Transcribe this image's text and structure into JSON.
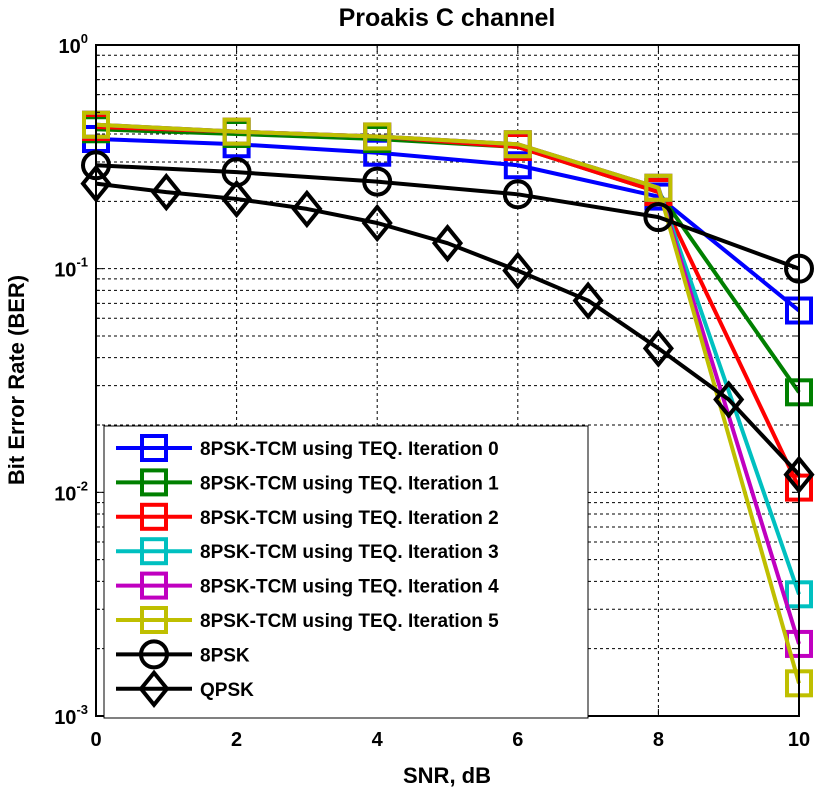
{
  "chart_data": {
    "type": "line",
    "title": "Proakis C channel",
    "xlabel": "SNR, dB",
    "ylabel": "Bit Error Rate (BER)",
    "xlim": [
      0,
      10
    ],
    "ylim": [
      0.001,
      1
    ],
    "yscale": "log",
    "grid": true,
    "legend_position": "bottom-left",
    "x_ticks": [
      0,
      2,
      4,
      6,
      8,
      10
    ],
    "y_ticks": [
      {
        "value": 1,
        "base": "10",
        "exp": "0"
      },
      {
        "value": 0.1,
        "base": "10",
        "exp": "-1"
      },
      {
        "value": 0.01,
        "base": "10",
        "exp": "-2"
      },
      {
        "value": 0.001,
        "base": "10",
        "exp": "-3"
      }
    ],
    "series": [
      {
        "name": "8PSK-TCM using TEQ. Iteration 0",
        "color": "#0000ff",
        "marker": "square",
        "x": [
          0,
          2,
          4,
          6,
          8,
          10
        ],
        "y": [
          0.38,
          0.36,
          0.33,
          0.29,
          0.21,
          0.065
        ]
      },
      {
        "name": "8PSK-TCM using TEQ. Iteration 1",
        "color": "#008000",
        "marker": "square",
        "x": [
          0,
          2,
          4,
          6,
          8,
          10
        ],
        "y": [
          0.42,
          0.4,
          0.38,
          0.35,
          0.22,
          0.028
        ]
      },
      {
        "name": "8PSK-TCM using TEQ. Iteration 2",
        "color": "#ff0000",
        "marker": "square",
        "x": [
          0,
          2,
          4,
          6,
          8,
          10
        ],
        "y": [
          0.43,
          0.41,
          0.39,
          0.35,
          0.22,
          0.0105
        ]
      },
      {
        "name": "8PSK-TCM using TEQ. Iteration 3",
        "color": "#00c0c0",
        "marker": "square",
        "x": [
          0,
          2,
          4,
          6,
          8,
          10
        ],
        "y": [
          0.44,
          0.41,
          0.39,
          0.36,
          0.23,
          0.0035
        ]
      },
      {
        "name": "8PSK-TCM using TEQ. Iteration 4",
        "color": "#c000c0",
        "marker": "square",
        "x": [
          0,
          2,
          4,
          6,
          8,
          10
        ],
        "y": [
          0.44,
          0.41,
          0.39,
          0.36,
          0.23,
          0.0021
        ]
      },
      {
        "name": "8PSK-TCM using TEQ. Iteration 5",
        "color": "#bfbf00",
        "marker": "square",
        "x": [
          0,
          2,
          4,
          6,
          8,
          10
        ],
        "y": [
          0.44,
          0.41,
          0.39,
          0.36,
          0.23,
          0.0014
        ]
      },
      {
        "name": "8PSK",
        "color": "#000000",
        "marker": "circle",
        "x": [
          0,
          2,
          4,
          6,
          8,
          10
        ],
        "y": [
          0.29,
          0.27,
          0.245,
          0.215,
          0.17,
          0.1
        ]
      },
      {
        "name": "QPSK",
        "color": "#000000",
        "marker": "diamond",
        "x": [
          0,
          1,
          2,
          3,
          4,
          5,
          6,
          7,
          8,
          9,
          10
        ],
        "y": [
          0.24,
          0.22,
          0.205,
          0.185,
          0.16,
          0.13,
          0.098,
          0.072,
          0.044,
          0.026,
          0.012
        ]
      }
    ]
  }
}
